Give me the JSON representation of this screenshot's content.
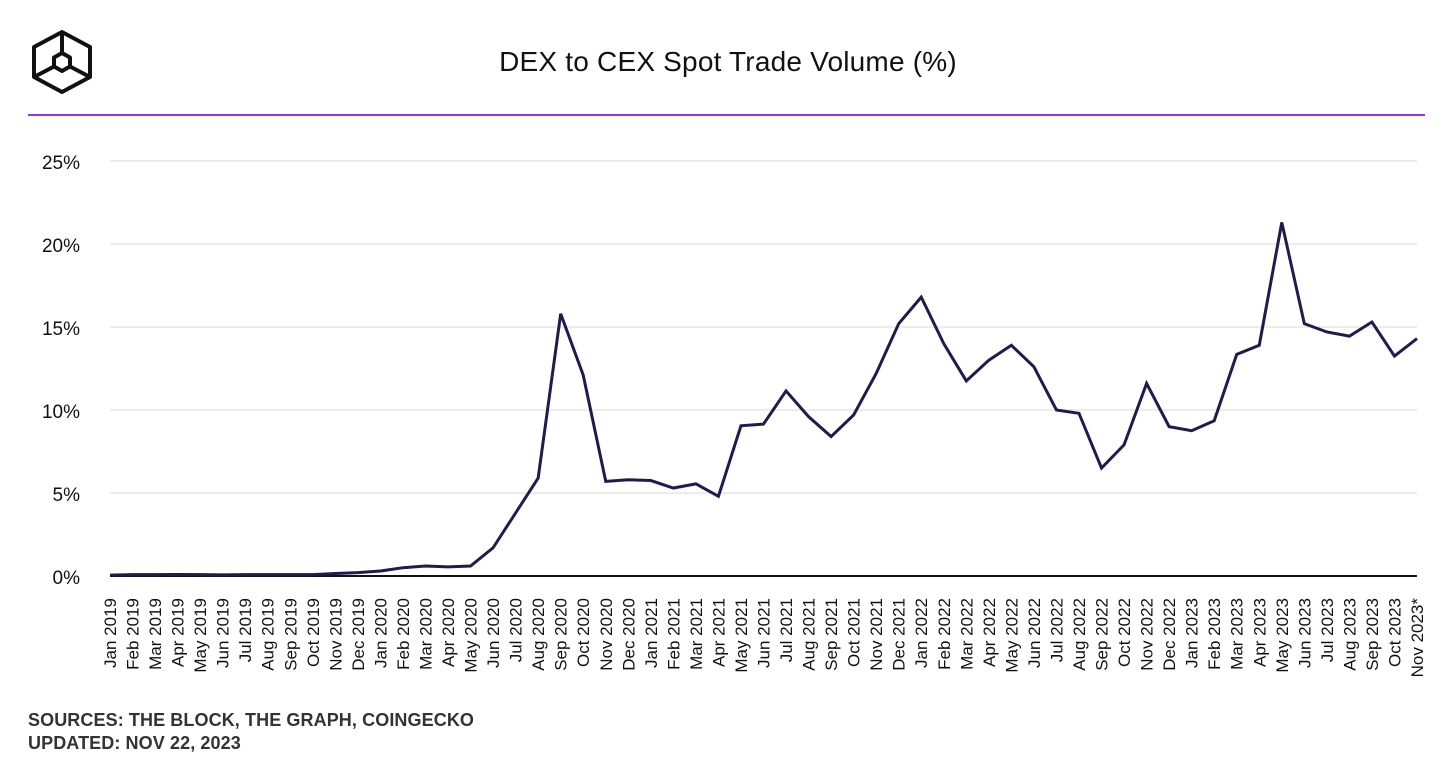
{
  "header": {
    "title": "DEX to CEX Spot Trade Volume (%)",
    "logo_icon": "the-block-cube-logo-icon"
  },
  "footer": {
    "sources": "SOURCES: THE BLOCK, THE GRAPH, COINGECKO",
    "updated": "UPDATED: NOV 22, 2023"
  },
  "colors": {
    "accent": "#9b30e6",
    "line": "#1f1b4d",
    "grid": "#e6e6e6",
    "axis": "#111111",
    "text": "#111111"
  },
  "chart_data": {
    "type": "line",
    "title": "DEX to CEX Spot Trade Volume (%)",
    "xlabel": "",
    "ylabel": "",
    "ylim": [
      0,
      25
    ],
    "yticks": [
      0,
      5,
      10,
      15,
      20,
      25
    ],
    "ytick_labels": [
      "0%",
      "5%",
      "10%",
      "15%",
      "20%",
      "25%"
    ],
    "grid": true,
    "legend": "none",
    "categories": [
      "Jan 2019",
      "Feb 2019",
      "Mar 2019",
      "Apr 2019",
      "May 2019",
      "Jun 2019",
      "Jul 2019",
      "Aug 2019",
      "Sep 2019",
      "Oct 2019",
      "Nov 2019",
      "Dec 2019",
      "Jan 2020",
      "Feb 2020",
      "Mar 2020",
      "Apr 2020",
      "May 2020",
      "Jun 2020",
      "Jul 2020",
      "Aug 2020",
      "Sep 2020",
      "Oct 2020",
      "Nov 2020",
      "Dec 2020",
      "Jan 2021",
      "Feb 2021",
      "Mar 2021",
      "Apr 2021",
      "May 2021",
      "Jun 2021",
      "Jul 2021",
      "Aug 2021",
      "Sep 2021",
      "Oct 2021",
      "Nov 2021",
      "Dec 2021",
      "Jan 2022",
      "Feb 2022",
      "Mar 2022",
      "Apr 2022",
      "May 2022",
      "Jun 2022",
      "Jul 2022",
      "Aug 2022",
      "Sep 2022",
      "Oct 2022",
      "Nov 2022",
      "Dec 2022",
      "Jan 2023",
      "Feb 2023",
      "Mar 2023",
      "Apr 2023",
      "May 2023",
      "Jun 2023",
      "Jul 2023",
      "Aug 2023",
      "Sep 2023",
      "Oct 2023",
      "Nov 2023*"
    ],
    "series": [
      {
        "name": "DEX to CEX Spot Trade Volume (%)",
        "values": [
          0.05,
          0.08,
          0.08,
          0.09,
          0.08,
          0.07,
          0.08,
          0.08,
          0.08,
          0.08,
          0.15,
          0.2,
          0.3,
          0.5,
          0.6,
          0.55,
          0.6,
          1.7,
          3.8,
          5.9,
          15.8,
          12.1,
          5.7,
          5.8,
          5.75,
          5.3,
          5.55,
          4.8,
          9.05,
          9.15,
          11.15,
          9.6,
          8.4,
          9.7,
          12.2,
          15.2,
          16.8,
          14.0,
          11.75,
          13.0,
          13.9,
          12.6,
          10.0,
          9.8,
          6.5,
          7.9,
          11.6,
          9.0,
          8.75,
          9.35,
          13.35,
          13.9,
          21.3,
          15.2,
          14.7,
          14.45,
          15.3,
          13.25,
          14.3
        ]
      }
    ]
  }
}
